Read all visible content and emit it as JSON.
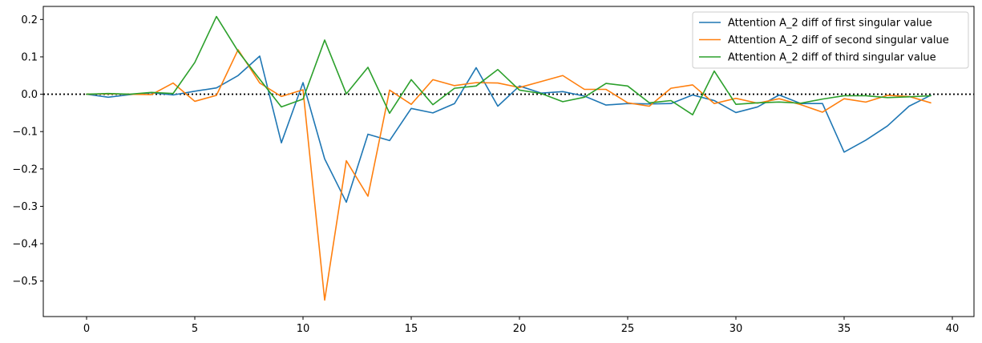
{
  "chart_data": {
    "type": "line",
    "title": "",
    "xlabel": "",
    "ylabel": "",
    "xlim": [
      -2,
      41
    ],
    "ylim": [
      -0.595,
      0.235
    ],
    "xticks": [
      0,
      5,
      10,
      15,
      20,
      25,
      30,
      35,
      40
    ],
    "yticks": [
      0.2,
      0.1,
      0.0,
      -0.1,
      -0.2,
      -0.3,
      -0.4,
      -0.5
    ],
    "ytick_labels": [
      "0.2",
      "0.1",
      "0.0",
      "−0.1",
      "−0.2",
      "−0.3",
      "−0.4",
      "−0.5"
    ],
    "grid": false,
    "legend_position": "top-right",
    "reference_line": {
      "y": 0.0,
      "style": "dotted",
      "color": "#000000"
    },
    "x": [
      0,
      1,
      2,
      3,
      4,
      5,
      6,
      7,
      8,
      9,
      10,
      11,
      12,
      13,
      14,
      15,
      16,
      17,
      18,
      19,
      20,
      21,
      22,
      23,
      24,
      25,
      26,
      27,
      28,
      29,
      30,
      31,
      32,
      33,
      34,
      35,
      36,
      37,
      38,
      39
    ],
    "series": [
      {
        "name": "Attention A_2 diff of first singular value",
        "color": "#1f77b4",
        "values": [
          0.0,
          -0.008,
          -0.001,
          0.004,
          -0.002,
          0.008,
          0.017,
          0.05,
          0.102,
          -0.13,
          0.031,
          -0.173,
          -0.289,
          -0.107,
          -0.124,
          -0.038,
          -0.05,
          -0.025,
          0.071,
          -0.032,
          0.022,
          0.003,
          0.007,
          -0.005,
          -0.029,
          -0.025,
          -0.026,
          -0.025,
          -0.002,
          -0.017,
          -0.049,
          -0.034,
          -0.002,
          -0.025,
          -0.025,
          -0.155,
          -0.123,
          -0.085,
          -0.032,
          -0.003
        ]
      },
      {
        "name": "Attention A_2 diff of second singular value",
        "color": "#ff7f0e",
        "values": [
          0.0,
          0.001,
          0.0,
          -0.001,
          0.03,
          -0.019,
          -0.003,
          0.119,
          0.03,
          -0.006,
          0.012,
          -0.551,
          -0.178,
          -0.273,
          0.011,
          -0.027,
          0.039,
          0.023,
          0.031,
          0.03,
          0.018,
          0.034,
          0.05,
          0.013,
          0.013,
          -0.023,
          -0.032,
          0.016,
          0.025,
          -0.025,
          -0.011,
          -0.024,
          -0.012,
          -0.028,
          -0.048,
          -0.012,
          -0.021,
          -0.003,
          -0.006,
          -0.023
        ]
      },
      {
        "name": "Attention A_2 diff of third singular value",
        "color": "#2ca02c",
        "values": [
          0.0,
          0.002,
          0.0,
          0.005,
          0.002,
          0.085,
          0.208,
          0.115,
          0.04,
          -0.034,
          -0.013,
          0.145,
          0.001,
          0.072,
          -0.051,
          0.039,
          -0.028,
          0.016,
          0.022,
          0.066,
          0.011,
          0.002,
          -0.02,
          -0.008,
          0.029,
          0.022,
          -0.023,
          -0.017,
          -0.055,
          0.062,
          -0.027,
          -0.023,
          -0.021,
          -0.024,
          -0.013,
          -0.004,
          -0.004,
          -0.009,
          -0.007,
          -0.004
        ]
      }
    ]
  }
}
